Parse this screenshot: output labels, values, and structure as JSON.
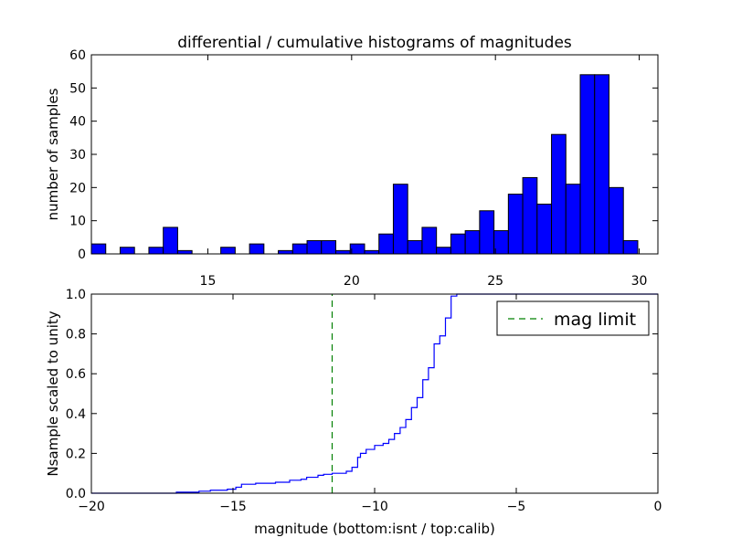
{
  "chart_data": [
    {
      "type": "bar",
      "title": "differential / cumulative histograms of magnitudes",
      "xlabel": "",
      "ylabel": "number of samples",
      "xlim": [
        10.95,
        30.65
      ],
      "ylim": [
        0,
        60
      ],
      "xticks": [
        15,
        20,
        25,
        30
      ],
      "yticks": [
        0,
        10,
        20,
        30,
        40,
        50,
        60
      ],
      "xtick_position": "top-axis-below",
      "bar_color": "#0000ff",
      "bar_edge_color": "#000000",
      "bin_width": 0.5,
      "bin_starts": [
        10.95,
        11.45,
        11.95,
        12.45,
        12.95,
        13.45,
        13.95,
        14.45,
        14.95,
        15.45,
        15.95,
        16.45,
        16.95,
        17.45,
        17.95,
        18.45,
        18.95,
        19.45,
        19.95,
        20.45,
        20.95,
        21.45,
        21.95,
        22.45,
        22.95,
        23.45,
        23.95,
        24.45,
        24.95,
        25.45,
        25.95,
        26.45,
        26.95,
        27.45,
        27.95,
        28.45,
        28.95,
        29.45,
        29.95
      ],
      "values": [
        3,
        0,
        2,
        0,
        2,
        8,
        1,
        0,
        0,
        2,
        0,
        3,
        0,
        1,
        3,
        4,
        4,
        1,
        3,
        1,
        6,
        21,
        4,
        8,
        2,
        6,
        7,
        13,
        7,
        18,
        23,
        15,
        36,
        21,
        54,
        54,
        20,
        4,
        0
      ]
    },
    {
      "type": "line",
      "title": "",
      "xlabel": "magnitude (bottom:isnt / top:calib)",
      "ylabel": "Nsample scaled to unity",
      "xlim": [
        -20,
        0
      ],
      "ylim": [
        0,
        1.0
      ],
      "xticks": [
        -20,
        -15,
        -10,
        -5,
        0
      ],
      "xtick_labels": [
        "−20",
        "−15",
        "−10",
        "−5",
        "0"
      ],
      "yticks": [
        0.0,
        0.2,
        0.4,
        0.6,
        0.8,
        1.0
      ],
      "ytick_labels": [
        "0.0",
        "0.2",
        "0.4",
        "0.6",
        "0.8",
        "1.0"
      ],
      "legend_position": "top-right",
      "series": [
        {
          "color": "#0000ff",
          "style": "steps-post",
          "x": [
            -20,
            -17.0,
            -16.2,
            -15.8,
            -15.2,
            -14.9,
            -14.7,
            -14.2,
            -13.5,
            -13.0,
            -12.6,
            -12.4,
            -12.0,
            -11.8,
            -11.5,
            -11.0,
            -10.8,
            -10.6,
            -10.5,
            -10.3,
            -10.0,
            -9.7,
            -9.5,
            -9.3,
            -9.1,
            -8.9,
            -8.7,
            -8.5,
            -8.3,
            -8.1,
            -7.9,
            -7.7,
            -7.5,
            -7.3,
            -7.1,
            -6.9,
            -6.7
          ],
          "y": [
            0.0,
            0.005,
            0.01,
            0.015,
            0.02,
            0.03,
            0.045,
            0.05,
            0.055,
            0.065,
            0.07,
            0.08,
            0.09,
            0.095,
            0.1,
            0.11,
            0.13,
            0.18,
            0.2,
            0.22,
            0.24,
            0.25,
            0.27,
            0.3,
            0.33,
            0.37,
            0.43,
            0.48,
            0.57,
            0.63,
            0.75,
            0.79,
            0.88,
            0.99,
            1.0,
            1.0,
            1.0
          ]
        },
        {
          "name": "mag limit",
          "color": "#008000",
          "style": "dashed-vertical",
          "x": [
            -11.5,
            -11.5
          ],
          "y": [
            0,
            1.0
          ]
        }
      ],
      "legend": [
        {
          "label": "mag limit",
          "color": "#008000",
          "style": "dashed"
        }
      ]
    }
  ]
}
